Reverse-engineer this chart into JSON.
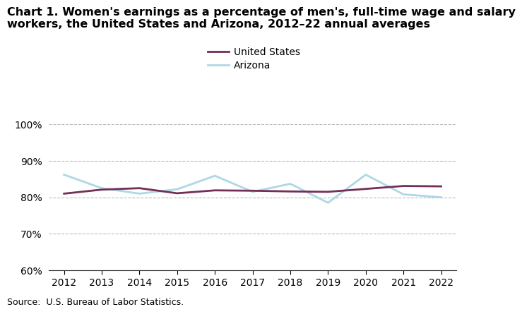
{
  "title_line1": "Chart 1. Women's earnings as a percentage of men's, full-time wage and salary",
  "title_line2": "workers, the United States and Arizona, 2012–22 annual averages",
  "years": [
    2012,
    2013,
    2014,
    2015,
    2016,
    2017,
    2018,
    2019,
    2020,
    2021,
    2022
  ],
  "us_values": [
    81.0,
    82.1,
    82.5,
    81.1,
    81.9,
    81.8,
    81.6,
    81.5,
    82.3,
    83.1,
    83.0
  ],
  "az_values": [
    86.2,
    82.5,
    81.0,
    82.2,
    85.9,
    81.5,
    83.7,
    78.5,
    86.2,
    80.8,
    80.0
  ],
  "us_color": "#722F57",
  "az_color": "#ADD8E6",
  "us_label": "United States",
  "az_label": "Arizona",
  "ylim": [
    60,
    102
  ],
  "yticks": [
    60,
    70,
    80,
    90,
    100
  ],
  "xlim": [
    2011.6,
    2022.4
  ],
  "source_text": "Source:  U.S. Bureau of Labor Statistics.",
  "title_fontsize": 11.5,
  "axis_fontsize": 10,
  "legend_fontsize": 10,
  "line_width": 2.0
}
